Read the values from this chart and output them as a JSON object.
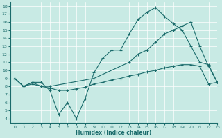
{
  "xlabel": "Humidex (Indice chaleur)",
  "xlim": [
    -0.5,
    23
  ],
  "ylim": [
    3.5,
    18.5
  ],
  "yticks": [
    4,
    5,
    6,
    7,
    8,
    9,
    10,
    11,
    12,
    13,
    14,
    15,
    16,
    17,
    18
  ],
  "xticks": [
    0,
    1,
    2,
    3,
    4,
    5,
    6,
    7,
    8,
    9,
    10,
    11,
    12,
    13,
    14,
    15,
    16,
    17,
    18,
    19,
    20,
    21,
    22,
    23
  ],
  "bg_color": "#c8eae4",
  "line_color": "#1a6b6b",
  "line1_x": [
    0,
    1,
    2,
    3,
    4,
    5,
    6,
    7,
    8,
    9,
    10,
    11,
    12,
    13,
    14,
    15,
    16,
    17,
    18,
    19,
    20,
    21,
    22,
    23
  ],
  "line1_y": [
    9.0,
    8.0,
    8.5,
    8.5,
    7.5,
    4.5,
    6.0,
    4.0,
    6.5,
    9.7,
    11.5,
    12.5,
    12.5,
    14.5,
    16.3,
    17.2,
    17.8,
    16.7,
    15.8,
    15.0,
    13.0,
    11.0,
    10.7,
    8.5
  ],
  "line2_x": [
    0,
    1,
    2,
    3,
    4,
    9,
    13,
    14,
    15,
    16,
    17,
    18,
    19,
    20,
    21,
    22,
    23
  ],
  "line2_y": [
    9.0,
    8.0,
    8.5,
    8.0,
    8.0,
    9.0,
    11.0,
    12.0,
    12.5,
    13.5,
    14.5,
    15.0,
    15.5,
    16.0,
    13.0,
    10.5,
    8.5
  ],
  "line3_x": [
    0,
    1,
    2,
    3,
    4,
    5,
    6,
    7,
    8,
    9,
    10,
    11,
    12,
    13,
    14,
    15,
    16,
    17,
    18,
    19,
    20,
    21,
    22,
    23
  ],
  "line3_y": [
    9.0,
    8.0,
    8.3,
    8.0,
    7.8,
    7.5,
    7.5,
    7.7,
    7.9,
    8.3,
    8.5,
    8.8,
    9.0,
    9.3,
    9.5,
    9.8,
    10.0,
    10.3,
    10.5,
    10.7,
    10.7,
    10.5,
    8.3,
    8.5
  ]
}
